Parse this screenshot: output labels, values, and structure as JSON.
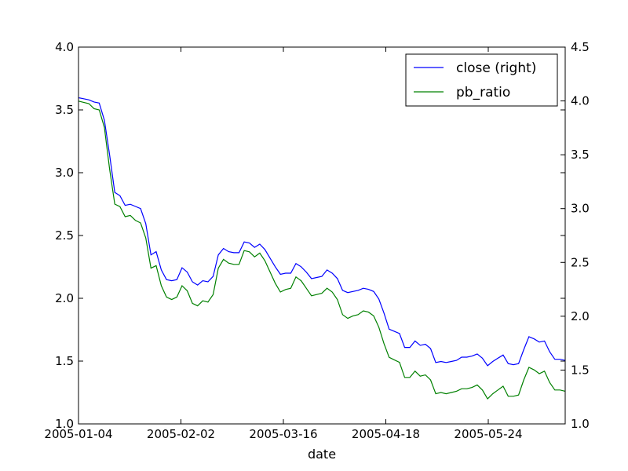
{
  "chart_data": {
    "type": "line",
    "xlabel": "date",
    "x_ticks": [
      "2005-01-04",
      "2005-02-02",
      "2005-03-16",
      "2005-04-18",
      "2005-05-24"
    ],
    "y_left": {
      "lim": [
        1.0,
        4.0
      ],
      "ticks": [
        "1.0",
        "1.5",
        "2.0",
        "2.5",
        "3.0",
        "3.5",
        "4.0"
      ]
    },
    "y_right": {
      "lim": [
        1.0,
        4.5
      ],
      "ticks": [
        "1.0",
        "1.5",
        "2.0",
        "2.5",
        "3.0",
        "3.5",
        "4.0",
        "4.5"
      ]
    },
    "legend_position": "top-right",
    "series": [
      {
        "name": "close (right)",
        "axis": "right",
        "color": "#0000ff",
        "values": [
          4.03,
          4.02,
          4.01,
          3.99,
          3.98,
          3.82,
          3.5,
          3.15,
          3.12,
          3.03,
          3.04,
          3.02,
          3.0,
          2.86,
          2.57,
          2.6,
          2.43,
          2.34,
          2.33,
          2.34,
          2.45,
          2.41,
          2.32,
          2.29,
          2.33,
          2.32,
          2.37,
          2.57,
          2.63,
          2.6,
          2.59,
          2.59,
          2.69,
          2.68,
          2.64,
          2.67,
          2.62,
          2.54,
          2.46,
          2.39,
          2.4,
          2.4,
          2.49,
          2.46,
          2.41,
          2.35,
          2.36,
          2.37,
          2.43,
          2.4,
          2.35,
          2.24,
          2.22,
          2.23,
          2.24,
          2.26,
          2.25,
          2.23,
          2.16,
          2.03,
          1.88,
          1.86,
          1.84,
          1.71,
          1.71,
          1.77,
          1.73,
          1.74,
          1.7,
          1.57,
          1.58,
          1.57,
          1.58,
          1.59,
          1.62,
          1.62,
          1.63,
          1.65,
          1.61,
          1.54,
          1.58,
          1.61,
          1.64,
          1.56,
          1.55,
          1.56,
          1.69,
          1.81,
          1.79,
          1.76,
          1.77,
          1.67,
          1.6,
          1.6,
          1.59
        ]
      },
      {
        "name": "pb_ratio",
        "axis": "left",
        "color": "#008000",
        "values": [
          3.57,
          3.56,
          3.55,
          3.51,
          3.5,
          3.36,
          3.03,
          2.75,
          2.73,
          2.65,
          2.66,
          2.62,
          2.6,
          2.48,
          2.24,
          2.26,
          2.1,
          2.01,
          1.99,
          2.01,
          2.1,
          2.06,
          1.96,
          1.94,
          1.98,
          1.97,
          2.03,
          2.24,
          2.31,
          2.28,
          2.27,
          2.27,
          2.38,
          2.37,
          2.33,
          2.36,
          2.3,
          2.21,
          2.12,
          2.05,
          2.07,
          2.08,
          2.17,
          2.14,
          2.08,
          2.02,
          2.03,
          2.04,
          2.08,
          2.05,
          1.99,
          1.87,
          1.84,
          1.86,
          1.87,
          1.9,
          1.89,
          1.86,
          1.77,
          1.64,
          1.53,
          1.51,
          1.49,
          1.37,
          1.37,
          1.42,
          1.38,
          1.39,
          1.35,
          1.24,
          1.25,
          1.24,
          1.25,
          1.26,
          1.28,
          1.28,
          1.29,
          1.31,
          1.27,
          1.2,
          1.24,
          1.27,
          1.3,
          1.22,
          1.22,
          1.23,
          1.35,
          1.45,
          1.43,
          1.4,
          1.42,
          1.33,
          1.27,
          1.27,
          1.26
        ]
      }
    ]
  }
}
